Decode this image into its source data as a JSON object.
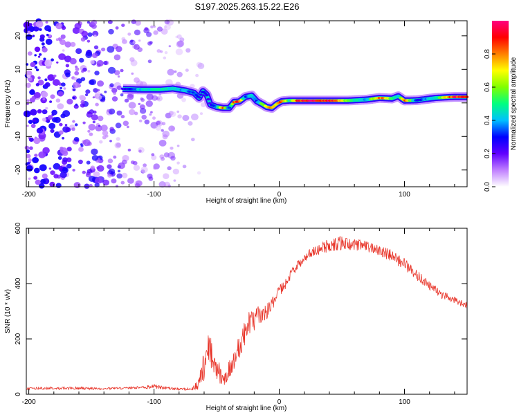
{
  "title": "S197.2025.263.15.22.E26",
  "chart_data": [
    {
      "type": "heatmap",
      "title": "S197.2025.263.15.22.E26",
      "xlabel": "Height of straight line (km)",
      "ylabel": "Frequency (Hz)",
      "xlim": [
        -202,
        150
      ],
      "ylim": [
        -25,
        24.5
      ],
      "xticks": [
        -200,
        -100,
        0,
        100
      ],
      "yticks": [
        -20,
        -10,
        0,
        10,
        20
      ],
      "noise_region": {
        "x_from": -202,
        "x_to": -60,
        "intensity": "high at low height, fading toward -60"
      },
      "ridge": {
        "description": "frequency of peak spectral amplitude vs height",
        "x": [
          -125,
          -110,
          -95,
          -85,
          -75,
          -68,
          -64,
          -61,
          -58,
          -55,
          -50,
          -45,
          -40,
          -36,
          -32,
          -27,
          -22,
          -18,
          -14,
          -10,
          -6,
          -2,
          2,
          8,
          15,
          25,
          40,
          55,
          70,
          80,
          90,
          95,
          100,
          110,
          125,
          140,
          150
        ],
        "freq": [
          4.2,
          4.0,
          4.0,
          4.3,
          3.7,
          3.0,
          1.5,
          3.5,
          2.5,
          -0.5,
          -1.2,
          -1.5,
          -1.5,
          0.3,
          0.4,
          1.8,
          2.2,
          0.5,
          -0.3,
          -1.2,
          -1.5,
          -0.3,
          0.5,
          0.7,
          0.7,
          0.7,
          0.7,
          0.7,
          1.0,
          1.5,
          1.3,
          2.0,
          0.7,
          0.8,
          1.5,
          1.8,
          1.8
        ],
        "amplitude": [
          0.25,
          0.45,
          0.5,
          0.45,
          0.4,
          0.35,
          0.3,
          0.3,
          0.3,
          0.25,
          0.4,
          0.9,
          0.3,
          0.85,
          0.9,
          0.3,
          0.5,
          0.3,
          0.6,
          0.8,
          0.85,
          0.7,
          0.95,
          0.5,
          0.95,
          0.98,
          0.98,
          0.6,
          0.4,
          0.9,
          0.6,
          0.4,
          0.9,
          0.3,
          0.5,
          0.95,
          0.9
        ]
      },
      "colorbar": {
        "label": "Normalized spectral amplitude",
        "ticks": [
          0.0,
          0.2,
          0.4,
          0.6,
          0.8
        ],
        "range": [
          0,
          1
        ],
        "colors": [
          "#ffffff",
          "#c080ff",
          "#6000ff",
          "#0000ff",
          "#00c0ff",
          "#00ff80",
          "#80ff00",
          "#ffff00",
          "#ff8000",
          "#ff0000",
          "#ff0080"
        ]
      }
    },
    {
      "type": "line",
      "xlabel": "Height of straight line (km)",
      "ylabel": "SNR (10 * v/v)",
      "xlim": [
        -202,
        150
      ],
      "ylim": [
        0,
        600
      ],
      "xticks": [
        -200,
        -100,
        0,
        100
      ],
      "yticks": [
        0,
        200,
        400,
        600
      ],
      "series": [
        {
          "name": "SNR",
          "color": "#e8352a",
          "envelope_x": [
            -202,
            -180,
            -160,
            -140,
            -120,
            -110,
            -100,
            -90,
            -80,
            -70,
            -65,
            -60,
            -58,
            -55,
            -50,
            -45,
            -40,
            -35,
            -30,
            -25,
            -20,
            -15,
            -10,
            -5,
            0,
            5,
            10,
            15,
            20,
            25,
            30,
            35,
            40,
            45,
            50,
            55,
            60,
            70,
            80,
            90,
            100,
            110,
            120,
            130,
            140,
            150
          ],
          "envelope_y": [
            20,
            22,
            22,
            20,
            22,
            25,
            28,
            22,
            18,
            20,
            30,
            100,
            180,
            150,
            90,
            60,
            80,
            140,
            200,
            250,
            270,
            290,
            300,
            330,
            370,
            400,
            440,
            470,
            490,
            510,
            520,
            530,
            540,
            545,
            545,
            545,
            540,
            535,
            520,
            500,
            470,
            430,
            390,
            360,
            340,
            320
          ],
          "oscillation_amplitude": [
            8,
            10,
            10,
            8,
            8,
            10,
            18,
            10,
            8,
            10,
            40,
            120,
            150,
            130,
            90,
            70,
            80,
            90,
            100,
            90,
            80,
            70,
            60,
            55,
            45,
            40,
            35,
            35,
            35,
            35,
            40,
            45,
            50,
            55,
            55,
            50,
            45,
            40,
            40,
            45,
            45,
            40,
            35,
            30,
            25,
            25
          ]
        }
      ]
    }
  ]
}
